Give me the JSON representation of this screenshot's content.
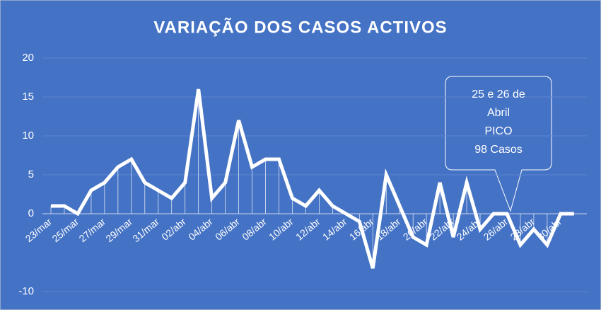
{
  "chart_data": {
    "type": "line",
    "title": "VARIAÇÃO DOS CASOS ACTIVOS",
    "categories": [
      "23/mar",
      null,
      "25/mar",
      null,
      "27/mar",
      null,
      "29/mar",
      null,
      "31/mar",
      null,
      "02/abr",
      null,
      "04/abr",
      null,
      "06/abr",
      null,
      "08/abr",
      null,
      "10/abr",
      null,
      "12/abr",
      null,
      "14/abr",
      null,
      "16/abr",
      null,
      "18/abr",
      null,
      "20/abr",
      null,
      "22/abr",
      null,
      "24/abr",
      null,
      "26/abr",
      null,
      "28/abr",
      null,
      "30/abr",
      null
    ],
    "series": [
      {
        "color": "#ffffff",
        "values": [
          1,
          1,
          0,
          3,
          4,
          6,
          7,
          4,
          3,
          2,
          4,
          16,
          2,
          4,
          12,
          6,
          7,
          7,
          2,
          1,
          3,
          1,
          0,
          -1,
          -7,
          5,
          1,
          -3,
          -4,
          4,
          -3,
          4,
          -2,
          0,
          0,
          -4,
          -2,
          -4,
          0,
          0
        ]
      }
    ],
    "ylim": [
      -10,
      20
    ],
    "yticks": [
      -10,
      0,
      5,
      10,
      15,
      20
    ],
    "grid": true,
    "drop_lines": true,
    "annotation": [
      "25 e 26 de",
      "Abril",
      "PICO",
      "98 Casos"
    ]
  }
}
